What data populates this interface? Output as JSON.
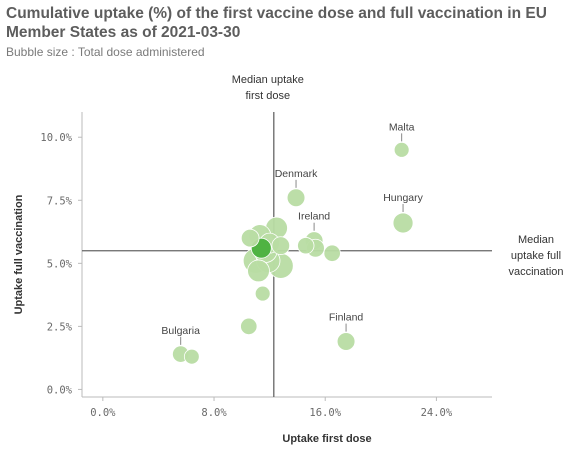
{
  "title": "Cumulative uptake (%) of the first vaccine dose and full vaccination in EU Member States as of 2021-03-30",
  "subtitle": "Bubble size : Total dose administered",
  "colors": {
    "bubble": "#b8dca3",
    "highlight": "#4fb342",
    "median_line": "#666666",
    "axis": "#bbbbbb"
  },
  "median_labels": {
    "x": [
      "Median uptake",
      "first dose"
    ],
    "y": [
      "Median",
      "uptake full",
      "vaccination"
    ]
  },
  "chart_data": {
    "type": "scatter",
    "title": "Cumulative uptake (%) of the first vaccine dose and full vaccination in EU Member States as of 2021-03-30",
    "subtitle": "Bubble size : Total dose administered",
    "xlabel": "Uptake first dose",
    "ylabel": "Uptake full vaccination",
    "xlim": [
      -1.5,
      28
    ],
    "ylim": [
      -0.3,
      11
    ],
    "xticks": [
      0,
      8,
      16,
      24
    ],
    "xtick_labels": [
      "0.0%",
      "8.0%",
      "16.0%",
      "24.0%"
    ],
    "yticks": [
      0,
      2.5,
      5,
      7.5,
      10
    ],
    "ytick_labels": [
      "0.0%",
      "2.5%",
      "5.0%",
      "7.5%",
      "10.0%"
    ],
    "grid": false,
    "medians": {
      "x": 12.3,
      "y": 5.5
    },
    "points": [
      {
        "label": "Malta",
        "x": 21.5,
        "y": 9.5,
        "size": 1
      },
      {
        "label": "Denmark",
        "x": 13.9,
        "y": 7.6,
        "size": 2
      },
      {
        "label": "Hungary",
        "x": 21.6,
        "y": 6.6,
        "size": 3
      },
      {
        "label": "Ireland",
        "x": 15.2,
        "y": 5.9,
        "size": 2
      },
      {
        "label": "Finland",
        "x": 17.5,
        "y": 1.9,
        "size": 2
      },
      {
        "label": "Bulgaria",
        "x": 5.6,
        "y": 1.4,
        "size": 1.5
      },
      {
        "x": 6.4,
        "y": 1.3,
        "size": 1
      },
      {
        "x": 10.5,
        "y": 2.5,
        "size": 1.5
      },
      {
        "x": 11.5,
        "y": 3.8,
        "size": 1
      },
      {
        "x": 16.5,
        "y": 5.4,
        "size": 1.5
      },
      {
        "x": 15.3,
        "y": 5.6,
        "size": 2
      },
      {
        "x": 14.6,
        "y": 5.7,
        "size": 1.5
      },
      {
        "x": 12.5,
        "y": 6.4,
        "size": 4
      },
      {
        "x": 12.8,
        "y": 5.7,
        "size": 2
      },
      {
        "x": 11.3,
        "y": 6.1,
        "size": 4
      },
      {
        "x": 10.6,
        "y": 6.0,
        "size": 2
      },
      {
        "x": 12.8,
        "y": 4.9,
        "size": 6
      },
      {
        "x": 11.9,
        "y": 5.1,
        "size": 5
      },
      {
        "x": 11.0,
        "y": 5.1,
        "size": 6
      },
      {
        "x": 11.2,
        "y": 4.7,
        "size": 4
      },
      {
        "x": 12.0,
        "y": 5.8,
        "size": 3
      },
      {
        "x": 11.7,
        "y": 5.5,
        "size": 5
      },
      {
        "x": 11.4,
        "y": 5.6,
        "size": 3,
        "highlight": true
      }
    ]
  }
}
